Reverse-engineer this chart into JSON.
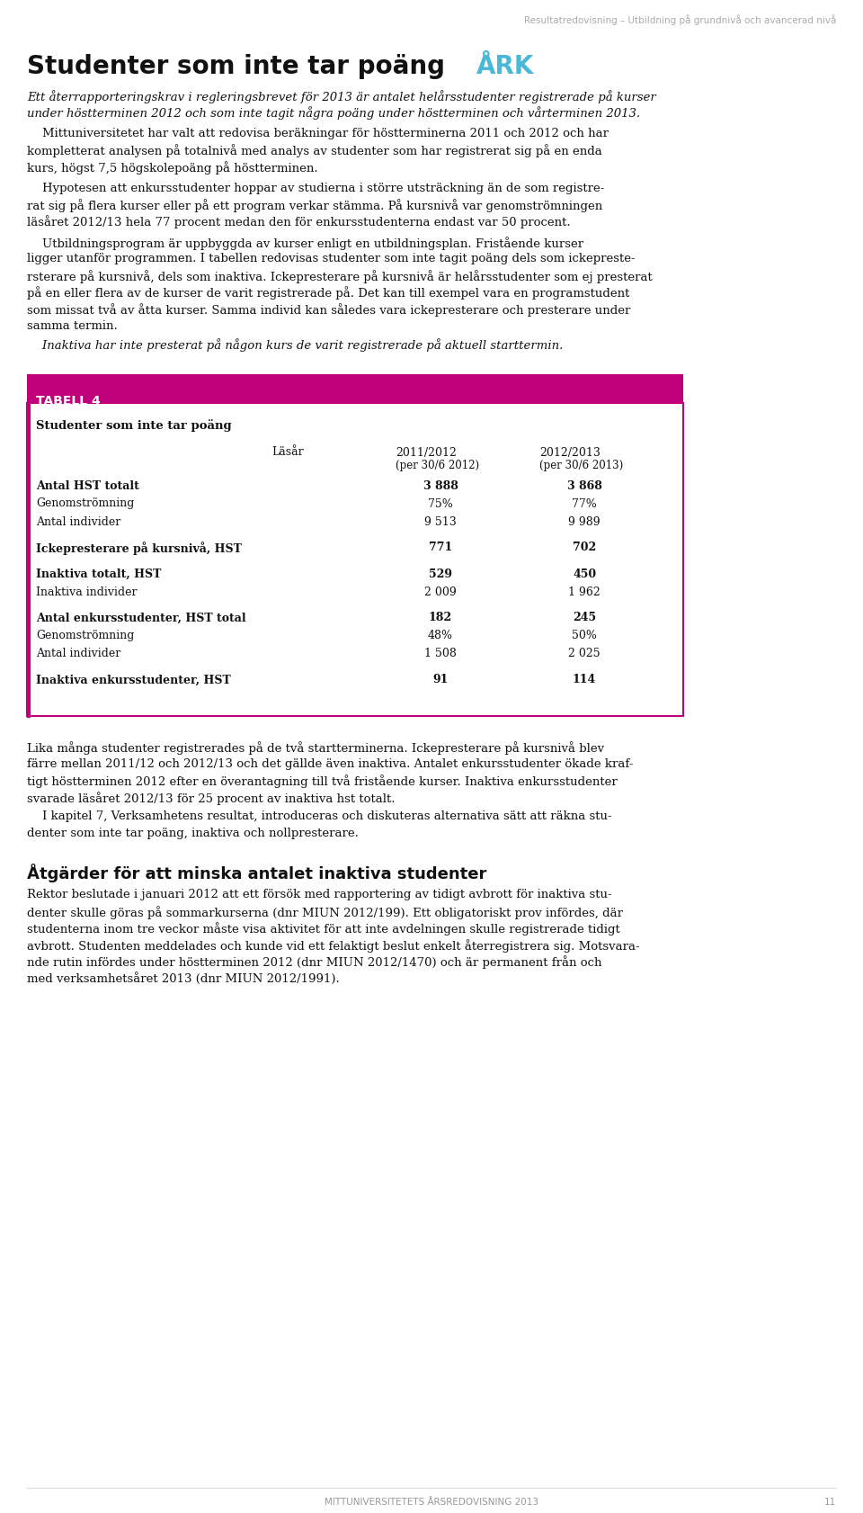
{
  "page_header": "Resultatredovisning – Utbildning på grundnivå och avancerad nivå",
  "section_title": "Studenter som inte tar poäng",
  "ark_label": "ÅRK",
  "table_header": "TABELL 4",
  "table_subtitle": "Studenter som inte tar poäng",
  "col_label": "Läsår",
  "col1": "2011/2012",
  "col1_sub": "(per 30/6 2012)",
  "col2": "2012/2013",
  "col2_sub": "(per 30/6 2013)",
  "rows": [
    {
      "label": "Antal HST totalt",
      "bold": true,
      "val1": "3 888",
      "val2": "3 868"
    },
    {
      "label": "Genomströmning",
      "bold": false,
      "val1": "75%",
      "val2": "77%"
    },
    {
      "label": "Antal individer",
      "bold": false,
      "val1": "9 513",
      "val2": "9 989"
    },
    {
      "label": "",
      "bold": false,
      "val1": "",
      "val2": ""
    },
    {
      "label": "Ickepresterare på kursnivå, HST",
      "bold": true,
      "val1": "771",
      "val2": "702"
    },
    {
      "label": "",
      "bold": false,
      "val1": "",
      "val2": ""
    },
    {
      "label": "Inaktiva totalt, HST",
      "bold": true,
      "val1": "529",
      "val2": "450"
    },
    {
      "label": "Inaktiva individer",
      "bold": false,
      "val1": "2 009",
      "val2": "1 962"
    },
    {
      "label": "",
      "bold": false,
      "val1": "",
      "val2": ""
    },
    {
      "label": "Antal enkursstudenter, HST total",
      "bold": true,
      "val1": "182",
      "val2": "245"
    },
    {
      "label": "Genomströmning",
      "bold": false,
      "val1": "48%",
      "val2": "50%"
    },
    {
      "label": "Antal individer",
      "bold": false,
      "val1": "1 508",
      "val2": "2 025"
    },
    {
      "label": "",
      "bold": false,
      "val1": "",
      "val2": ""
    },
    {
      "label": "Inaktiva enkursstudenter, HST",
      "bold": true,
      "val1": "91",
      "val2": "114"
    }
  ],
  "magenta_color": "#c0007a",
  "ark_color": "#4ab8d8",
  "header_text_color": "#aaaaaa",
  "body_text_color": "#111111",
  "footer_text_color": "#999999",
  "page_footer": "MITTUNIVERSITETETS ÅRSREDOVISNING 2013",
  "page_number": "11",
  "section2_title": "Åtgärder för att minska antalet inaktiva studenter"
}
